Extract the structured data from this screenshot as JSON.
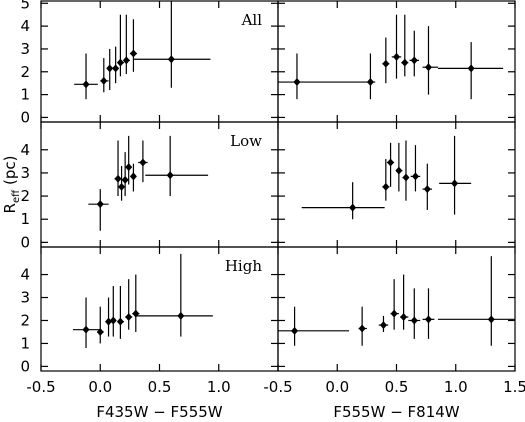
{
  "chart_data": [
    {
      "type": "scatter",
      "label": "All",
      "xlim": [
        -0.5,
        1.5
      ],
      "ylim": [
        -0.2,
        5.1
      ],
      "xticks": [
        -0.5,
        {
          "value": 0,
          "label": "0.0"
        },
        0.5,
        {
          "value": 1,
          "label": "1.0"
        }
      ],
      "yticks": [
        0,
        1,
        2,
        3,
        4,
        5
      ],
      "x": [
        -0.12,
        0.03,
        0.08,
        0.13,
        0.17,
        0.22,
        0.28,
        0.6
      ],
      "values": [
        1.45,
        1.6,
        2.15,
        2.15,
        2.4,
        2.5,
        2.8,
        2.55
      ],
      "x_lo": [
        -0.22,
        0.0,
        0.06,
        0.11,
        0.15,
        0.2,
        0.25,
        0.28
      ],
      "x_hi": [
        -0.02,
        0.07,
        0.11,
        0.15,
        0.2,
        0.25,
        0.31,
        0.93
      ],
      "y_lo": [
        0.8,
        1.1,
        1.2,
        1.5,
        1.8,
        1.9,
        2.0,
        1.3
      ],
      "y_hi": [
        2.8,
        2.6,
        3.0,
        3.1,
        4.5,
        4.5,
        4.3,
        5.1
      ]
    },
    {
      "type": "scatter",
      "xlim": [
        -0.5,
        1.5
      ],
      "ylim": [
        -0.2,
        5.1
      ],
      "xticks": [
        -0.5,
        {
          "value": 0,
          "label": "0.0"
        },
        0.5,
        {
          "value": 1,
          "label": "1.0"
        },
        1.5
      ],
      "yticks": [
        0,
        1,
        2,
        3,
        4,
        5
      ],
      "x": [
        -0.34,
        0.28,
        0.41,
        0.5,
        0.57,
        0.65,
        0.77,
        1.13
      ],
      "values": [
        1.55,
        1.55,
        2.35,
        2.65,
        2.4,
        2.5,
        2.2,
        2.15
      ],
      "x_lo": [
        -0.5,
        0.25,
        0.38,
        0.46,
        0.54,
        0.61,
        0.72,
        0.85
      ],
      "x_hi": [
        0.27,
        0.32,
        0.44,
        0.54,
        0.6,
        0.69,
        0.85,
        1.4
      ],
      "y_lo": [
        0.8,
        0.8,
        1.5,
        1.7,
        1.8,
        1.8,
        1.0,
        0.8
      ],
      "y_hi": [
        2.8,
        2.8,
        3.5,
        4.5,
        4.5,
        3.8,
        4.0,
        3.3
      ]
    },
    {
      "type": "scatter",
      "label": "Low",
      "ylabel": {
        "main": "R",
        "sub": "eff",
        "unit": "(pc)"
      },
      "xlim": [
        -0.5,
        1.5
      ],
      "ylim": [
        -0.2,
        5.2
      ],
      "xticks": [
        -0.5,
        {
          "value": 0,
          "label": "0.0"
        },
        0.5,
        {
          "value": 1,
          "label": "1.0"
        }
      ],
      "yticks": [
        0,
        1,
        2,
        3,
        4
      ],
      "x": [
        0.0,
        0.15,
        0.18,
        0.21,
        0.24,
        0.28,
        0.36,
        0.59
      ],
      "values": [
        1.65,
        2.75,
        2.4,
        2.7,
        3.25,
        2.85,
        3.45,
        2.9
      ],
      "x_lo": [
        -0.1,
        0.12,
        0.15,
        0.19,
        0.22,
        0.26,
        0.32,
        0.38
      ],
      "x_hi": [
        0.07,
        0.16,
        0.2,
        0.23,
        0.26,
        0.3,
        0.4,
        0.91
      ],
      "y_lo": [
        0.5,
        2.0,
        1.8,
        2.0,
        2.5,
        2.2,
        2.6,
        2.0
      ],
      "y_hi": [
        2.3,
        4.4,
        3.3,
        3.9,
        4.6,
        3.4,
        4.4,
        4.6
      ]
    },
    {
      "type": "scatter",
      "xlim": [
        -0.5,
        1.5
      ],
      "ylim": [
        -0.2,
        5.2
      ],
      "xticks": [
        -0.5,
        {
          "value": 0,
          "label": "0.0"
        },
        0.5,
        {
          "value": 1,
          "label": "1.0"
        },
        1.5
      ],
      "yticks": [
        0,
        1,
        2,
        3,
        4
      ],
      "x": [
        0.13,
        0.41,
        0.45,
        0.52,
        0.58,
        0.66,
        0.76,
        0.99
      ],
      "values": [
        1.5,
        2.4,
        3.45,
        3.1,
        2.8,
        2.85,
        2.3,
        2.55
      ],
      "x_lo": [
        -0.3,
        0.38,
        0.42,
        0.5,
        0.55,
        0.62,
        0.72,
        0.86
      ],
      "x_hi": [
        0.4,
        0.44,
        0.48,
        0.55,
        0.6,
        0.7,
        0.8,
        1.13
      ],
      "y_lo": [
        1.0,
        1.8,
        2.4,
        2.2,
        1.8,
        2.2,
        1.4,
        1.2
      ],
      "y_hi": [
        2.6,
        3.6,
        4.3,
        4.3,
        4.4,
        4.2,
        3.4,
        4.6
      ]
    },
    {
      "type": "scatter",
      "label": "High",
      "xlabel": "F435W − F555W",
      "xlim": [
        -0.5,
        1.5
      ],
      "ylim": [
        -0.2,
        5.2
      ],
      "xticks": [
        -0.5,
        {
          "value": 0,
          "label": "0.0"
        },
        0.5,
        {
          "value": 1,
          "label": "1.0"
        }
      ],
      "yticks": [
        0,
        1,
        2,
        3,
        4
      ],
      "x": [
        -0.12,
        0.0,
        0.07,
        0.11,
        0.17,
        0.24,
        0.3,
        0.68
      ],
      "values": [
        1.6,
        1.5,
        1.95,
        2.0,
        1.95,
        2.15,
        2.3,
        2.2
      ],
      "x_lo": [
        -0.23,
        -0.02,
        0.05,
        0.09,
        0.15,
        0.21,
        0.27,
        0.3
      ],
      "x_hi": [
        0.0,
        0.03,
        0.09,
        0.13,
        0.2,
        0.27,
        0.33,
        0.95
      ],
      "y_lo": [
        0.8,
        1.0,
        1.3,
        1.3,
        1.2,
        1.6,
        1.5,
        1.3
      ],
      "y_hi": [
        3.0,
        2.6,
        3.0,
        3.5,
        3.5,
        3.8,
        4.0,
        4.9
      ]
    },
    {
      "type": "scatter",
      "xlabel": "F555W − F814W",
      "xlim": [
        -0.5,
        1.5
      ],
      "ylim": [
        -0.2,
        5.2
      ],
      "xticks": [
        -0.5,
        {
          "value": 0,
          "label": "0.0"
        },
        0.5,
        {
          "value": 1,
          "label": "1.0"
        },
        1.5
      ],
      "yticks": [
        0,
        1,
        2,
        3,
        4
      ],
      "x": [
        -0.36,
        0.21,
        0.39,
        0.48,
        0.56,
        0.65,
        0.77,
        1.3
      ],
      "values": [
        1.55,
        1.65,
        1.8,
        2.3,
        2.15,
        2.0,
        2.05,
        2.05
      ],
      "x_lo": [
        -0.5,
        0.18,
        0.35,
        0.45,
        0.53,
        0.6,
        0.72,
        0.85
      ],
      "x_hi": [
        0.1,
        0.25,
        0.43,
        0.52,
        0.6,
        0.7,
        0.82,
        1.5
      ],
      "y_lo": [
        0.9,
        0.9,
        1.5,
        1.6,
        1.6,
        1.2,
        1.2,
        0.9
      ],
      "y_hi": [
        2.6,
        2.6,
        2.2,
        3.8,
        4.0,
        3.4,
        3.4,
        4.8
      ]
    }
  ]
}
